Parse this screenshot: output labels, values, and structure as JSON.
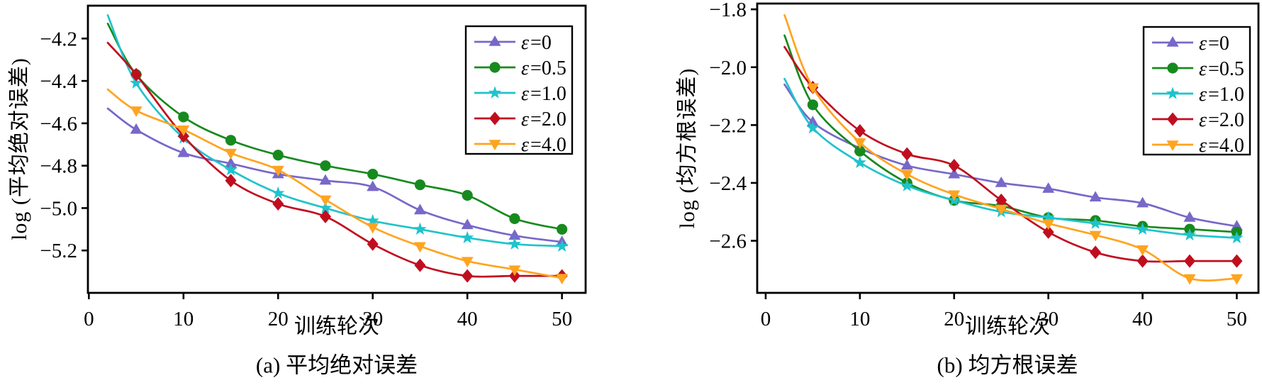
{
  "figure": {
    "background": "#ffffff",
    "axis_color": "#000000",
    "legend": {
      "border_color": "#000000",
      "background": "#ffffff",
      "position": "top-right"
    }
  },
  "chart_data": [
    {
      "type": "line",
      "title": "(a) 平均绝对误差",
      "xlabel": "训练轮次",
      "ylabel": "log (平均绝对误差)",
      "x": [
        2,
        5,
        10,
        15,
        20,
        25,
        30,
        35,
        40,
        45,
        50
      ],
      "x_ticks": [
        0,
        10,
        20,
        30,
        40,
        50
      ],
      "y_ticks": [
        -4.2,
        -4.4,
        -4.6,
        -4.8,
        -5.0,
        -5.2
      ],
      "xlim": [
        -0.1,
        52.5
      ],
      "ylim": [
        -5.4,
        -4.045
      ],
      "grid": false,
      "legend_position": "top-right",
      "marker_from_index": 1,
      "series": [
        {
          "name": "ε=0",
          "color": "#7768C9",
          "marker": "triangle-up",
          "values": [
            -4.53,
            -4.63,
            -4.74,
            -4.79,
            -4.84,
            -4.87,
            -4.9,
            -5.01,
            -5.08,
            -5.13,
            -5.16
          ]
        },
        {
          "name": "ε=0.5",
          "color": "#178A1E",
          "marker": "circle",
          "values": [
            -4.13,
            -4.37,
            -4.57,
            -4.68,
            -4.75,
            -4.8,
            -4.84,
            -4.89,
            -4.94,
            -5.05,
            -5.1
          ]
        },
        {
          "name": "ε=1.0",
          "color": "#1FC3CC",
          "marker": "star",
          "values": [
            -4.09,
            -4.41,
            -4.67,
            -4.82,
            -4.93,
            -5.0,
            -5.06,
            -5.1,
            -5.14,
            -5.17,
            -5.18
          ]
        },
        {
          "name": "ε=2.0",
          "color": "#C00E1F",
          "marker": "diamond",
          "values": [
            -4.22,
            -4.37,
            -4.66,
            -4.87,
            -4.98,
            -5.04,
            -5.17,
            -5.27,
            -5.32,
            -5.32,
            -5.32
          ]
        },
        {
          "name": "ε=4.0",
          "color": "#FFA420",
          "marker": "triangle-down",
          "values": [
            -4.44,
            -4.54,
            -4.63,
            -4.74,
            -4.82,
            -4.96,
            -5.09,
            -5.18,
            -5.25,
            -5.29,
            -5.33
          ]
        }
      ]
    },
    {
      "type": "line",
      "title": "(b) 均方根误差",
      "xlabel": "训练轮次",
      "ylabel": "log (均方根误差)",
      "x": [
        2,
        5,
        10,
        15,
        20,
        25,
        30,
        35,
        40,
        45,
        50
      ],
      "x_ticks": [
        0,
        10,
        20,
        30,
        40,
        50
      ],
      "y_ticks": [
        -1.8,
        -2.0,
        -2.2,
        -2.4,
        -2.6
      ],
      "xlim": [
        -0.9,
        52.3
      ],
      "ylim": [
        -2.78,
        -1.78
      ],
      "grid": false,
      "legend_position": "top-right",
      "marker_from_index": 1,
      "series": [
        {
          "name": "ε=0",
          "color": "#7768C9",
          "marker": "triangle-up",
          "values": [
            -2.06,
            -2.19,
            -2.28,
            -2.34,
            -2.37,
            -2.4,
            -2.42,
            -2.45,
            -2.47,
            -2.52,
            -2.55
          ]
        },
        {
          "name": "ε=0.5",
          "color": "#178A1E",
          "marker": "circle",
          "values": [
            -1.89,
            -2.13,
            -2.29,
            -2.4,
            -2.46,
            -2.48,
            -2.52,
            -2.53,
            -2.55,
            -2.56,
            -2.57
          ]
        },
        {
          "name": "ε=1.0",
          "color": "#1FC3CC",
          "marker": "star",
          "values": [
            -2.04,
            -2.21,
            -2.33,
            -2.41,
            -2.46,
            -2.5,
            -2.52,
            -2.54,
            -2.56,
            -2.58,
            -2.59
          ]
        },
        {
          "name": "ε=2.0",
          "color": "#C00E1F",
          "marker": "diamond",
          "values": [
            -1.93,
            -2.07,
            -2.22,
            -2.3,
            -2.34,
            -2.46,
            -2.57,
            -2.64,
            -2.67,
            -2.67,
            -2.67
          ]
        },
        {
          "name": "ε=4.0",
          "color": "#FFA420",
          "marker": "triangle-down",
          "values": [
            -1.82,
            -2.07,
            -2.26,
            -2.37,
            -2.44,
            -2.49,
            -2.54,
            -2.58,
            -2.63,
            -2.73,
            -2.73
          ]
        }
      ]
    }
  ]
}
